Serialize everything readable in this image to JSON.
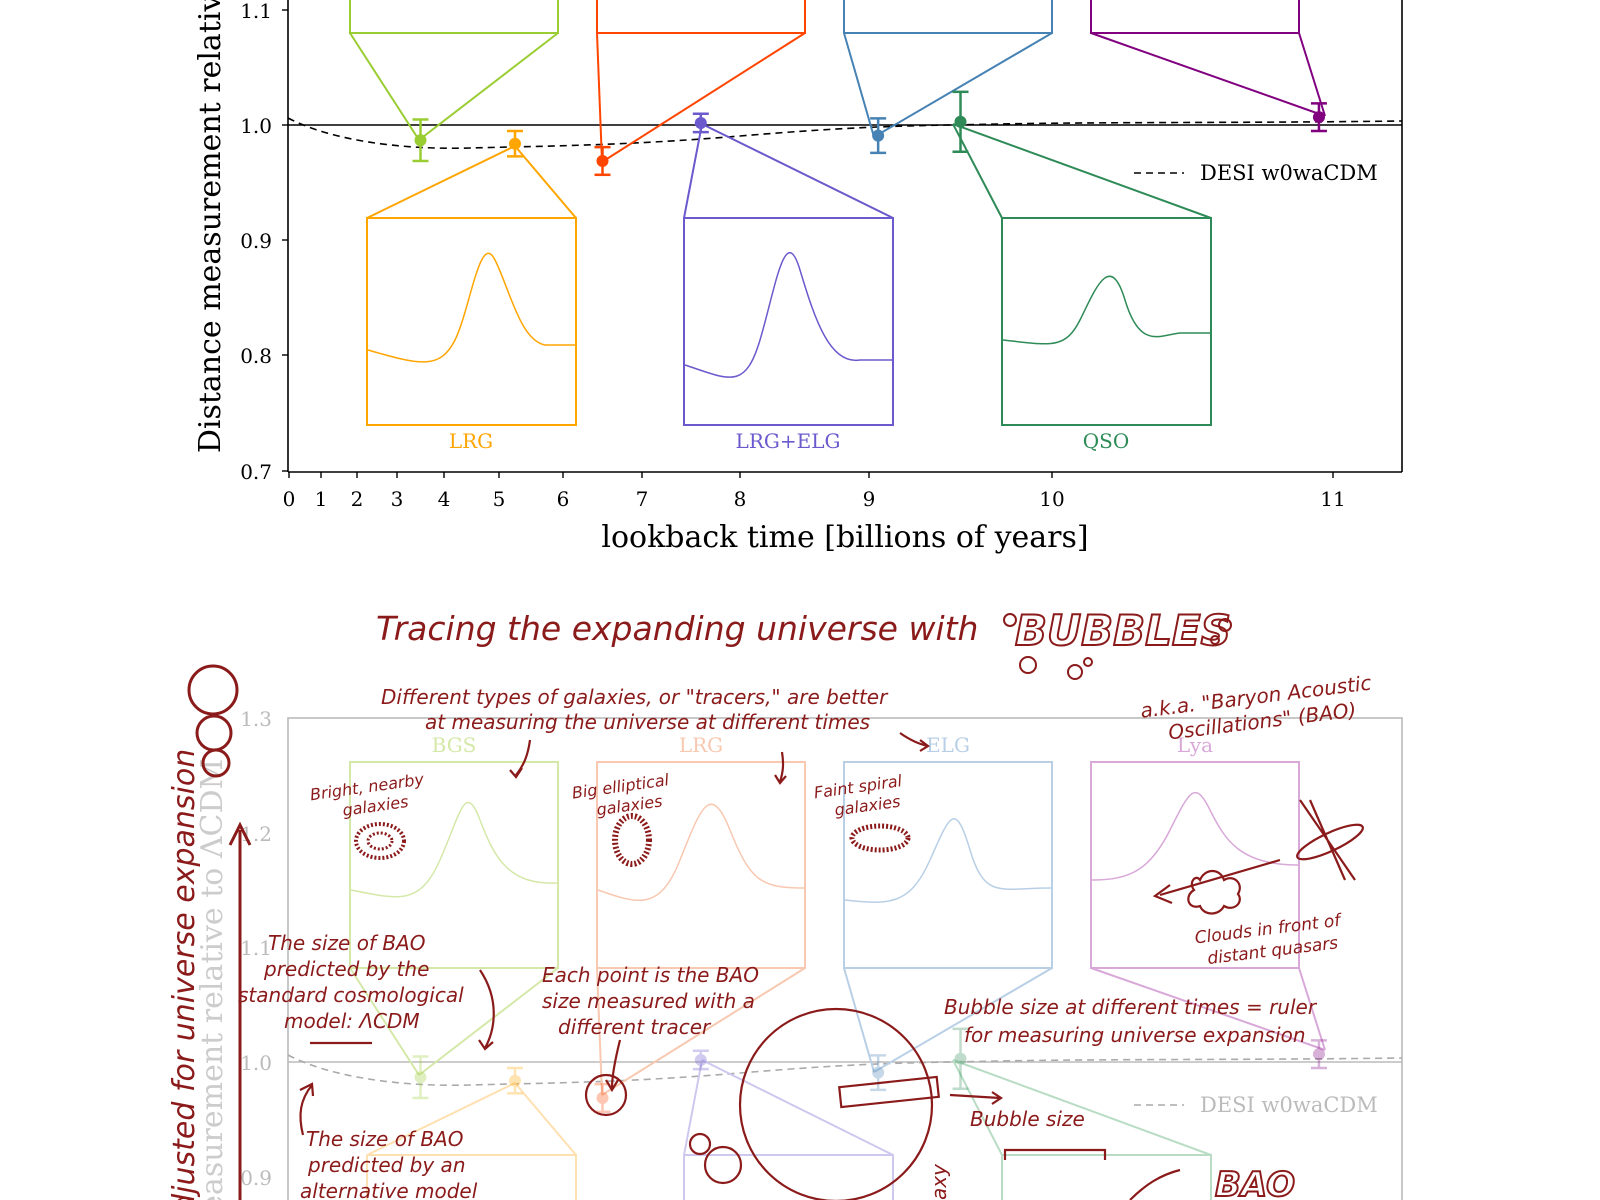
{
  "chart_data": [
    {
      "type": "scatter",
      "xlabel": "lookback time [billions of years]",
      "ylabel": "Distance measurement relative",
      "xlim": [
        0,
        11.25
      ],
      "ylim": [
        0.7,
        1.3
      ],
      "x_ticks": [
        "0",
        "1",
        "2",
        "3",
        "4",
        "5",
        "6",
        "7",
        "8",
        "9",
        "10",
        "11"
      ],
      "y_ticks": [
        "0.7",
        "0.8",
        "0.9",
        "1.0",
        "1.1"
      ],
      "reference_line": 1.0,
      "legend": {
        "label": "DESI w0waCDM",
        "placement": "right"
      },
      "series": [
        {
          "x": 3.5,
          "y": 0.987,
          "err": 0.018,
          "color": "#9acd32"
        },
        {
          "x": 5.25,
          "y": 0.984,
          "err": 0.011,
          "color": "#ffa500"
        },
        {
          "x": 6.5,
          "y": 0.969,
          "err": 0.012,
          "color": "#ff4500"
        },
        {
          "x": 7.6,
          "y": 1.002,
          "err": 0.008,
          "color": "#6a5acd"
        },
        {
          "x": 9.05,
          "y": 0.991,
          "err": 0.015,
          "color": "#4682b4"
        },
        {
          "x": 9.5,
          "y": 1.003,
          "err": 0.026,
          "color": "#2e8b57"
        },
        {
          "x": 10.95,
          "y": 1.007,
          "err": 0.012,
          "color": "#800080"
        }
      ],
      "insets": [
        {
          "label": "LRG",
          "color": "#ffa500"
        },
        {
          "label": "LRG+ELG",
          "color": "#6a5acd"
        },
        {
          "label": "QSO",
          "color": "#2e8b57"
        }
      ]
    },
    {
      "type": "scatter",
      "title": "Tracing the expanding universe with",
      "title_highlight": "BUBBLES",
      "ylabel": "adjusted for universe expansion",
      "ylabel_faded": "measurement relative to ΛCDM",
      "ylim": [
        0.7,
        1.3
      ],
      "y_ticks": [
        "0.9",
        "1.0",
        "1.1",
        "1.2",
        "1.3"
      ],
      "tracers": [
        "BGS",
        "LRG",
        "ELG",
        "Lya"
      ],
      "legend": {
        "label": "DESI w0waCDM",
        "placement": "right"
      }
    }
  ],
  "annotations": {
    "tracers_note": [
      "Different types of galaxies, or \"tracers,\" are better",
      "at measuring the universe at different times"
    ],
    "bao_name": [
      "a.k.a. \"Baryon Acoustic",
      "Oscillations\" (BAO)"
    ],
    "bgs": [
      "Bright, nearby",
      "galaxies"
    ],
    "lrg": [
      "Big elliptical",
      "galaxies"
    ],
    "elg": [
      "Faint spiral",
      "galaxies"
    ],
    "lya": [
      "Clouds in front of",
      "distant quasars"
    ],
    "lcdm": [
      "The size of BAO",
      "predicted by the",
      "standard cosmological",
      "model: ΛCDM"
    ],
    "point": [
      "Each point is the BAO",
      "size measured with a",
      "different tracer"
    ],
    "ruler": [
      "Bubble size at different times = ruler",
      "for measuring universe expansion"
    ],
    "alt": [
      "The size of BAO",
      "predicted by an",
      "alternative model"
    ],
    "bubble_size": "Bubble size",
    "bao_badge": "BAO",
    "galaxy": "axy"
  }
}
